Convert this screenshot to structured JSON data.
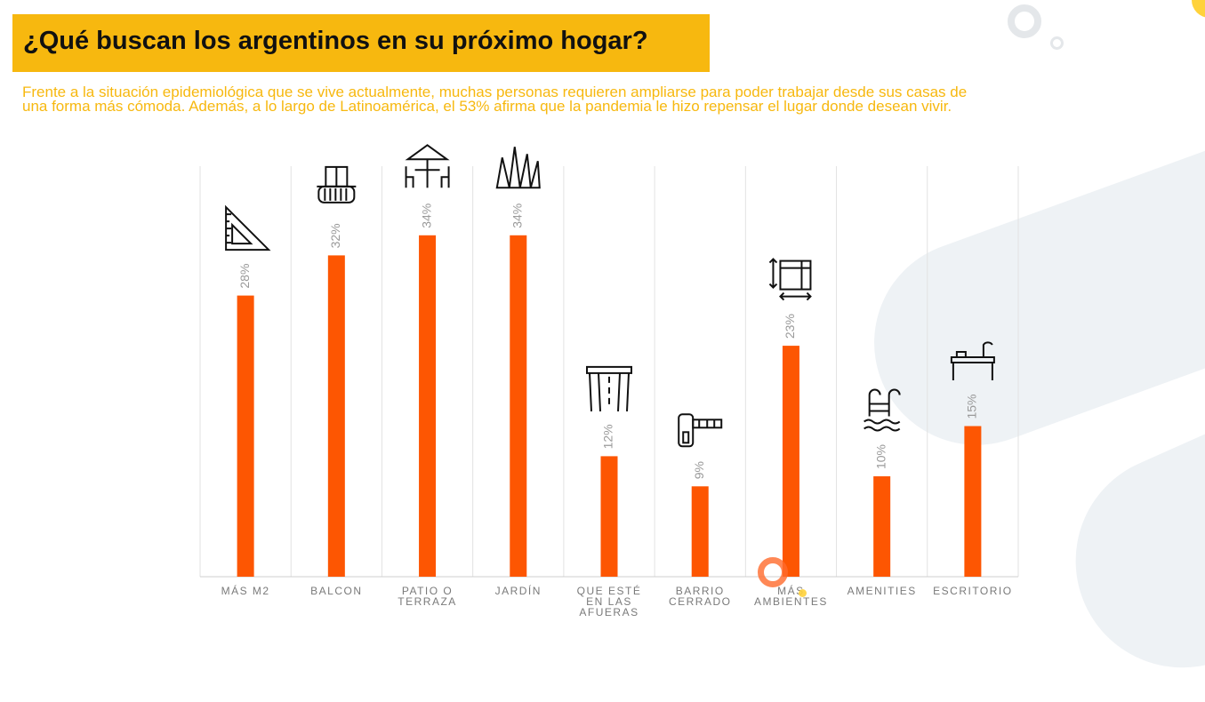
{
  "header": {
    "title": "¿Qué buscan los argentinos en su próximo hogar?",
    "subtitle_line1": "Frente a la situación epidemiológica que se vive actualmente, muchas personas requieren ampliarse para poder trabajar desde sus casas de",
    "subtitle_line2": "una forma más cómoda. Además, a lo largo de Latinoamérica, el 53% afirma que la pandemia le hizo repensar el lugar donde desean vivir."
  },
  "colors": {
    "bar": "#fd5602",
    "title_background": "#f7b80f",
    "subtitle_text": "#f7b80f",
    "gridline": "#e2e2e2"
  },
  "chart_data": {
    "type": "bar",
    "categories": [
      "MÁS M2",
      "BALCON",
      "PATIO O TERRAZA",
      "JARDÍN",
      "QUE ESTÉ EN LAS AFUERAS",
      "BARRIO CERRADO",
      "MÁS AMBIENTES",
      "AMENITIES",
      "ESCRITORIO"
    ],
    "category_lines": [
      [
        "MÁS M2"
      ],
      [
        "BALCON"
      ],
      [
        "PATIO O",
        "TERRAZA"
      ],
      [
        "JARDÍN"
      ],
      [
        "QUE ESTÉ",
        "EN LAS",
        "AFUERAS"
      ],
      [
        "BARRIO",
        "CERRADO"
      ],
      [
        "MÁS",
        "AMBIENTES"
      ],
      [
        "AMENITIES"
      ],
      [
        "ESCRITORIO"
      ]
    ],
    "values": [
      28,
      32,
      34,
      34,
      12,
      9,
      23,
      10,
      15
    ],
    "value_labels": [
      "28%",
      "32%",
      "34%",
      "34%",
      "12%",
      "9%",
      "23%",
      "10%",
      "15%"
    ],
    "icons": [
      "set-square-icon",
      "balcony-icon",
      "patio-table-umbrella-icon",
      "grass-icon",
      "road-icon",
      "gated-barrier-icon",
      "room-expand-icon",
      "pool-ladder-icon",
      "desk-icon"
    ],
    "ylim": [
      0,
      40
    ],
    "grid": "vertical separators"
  }
}
